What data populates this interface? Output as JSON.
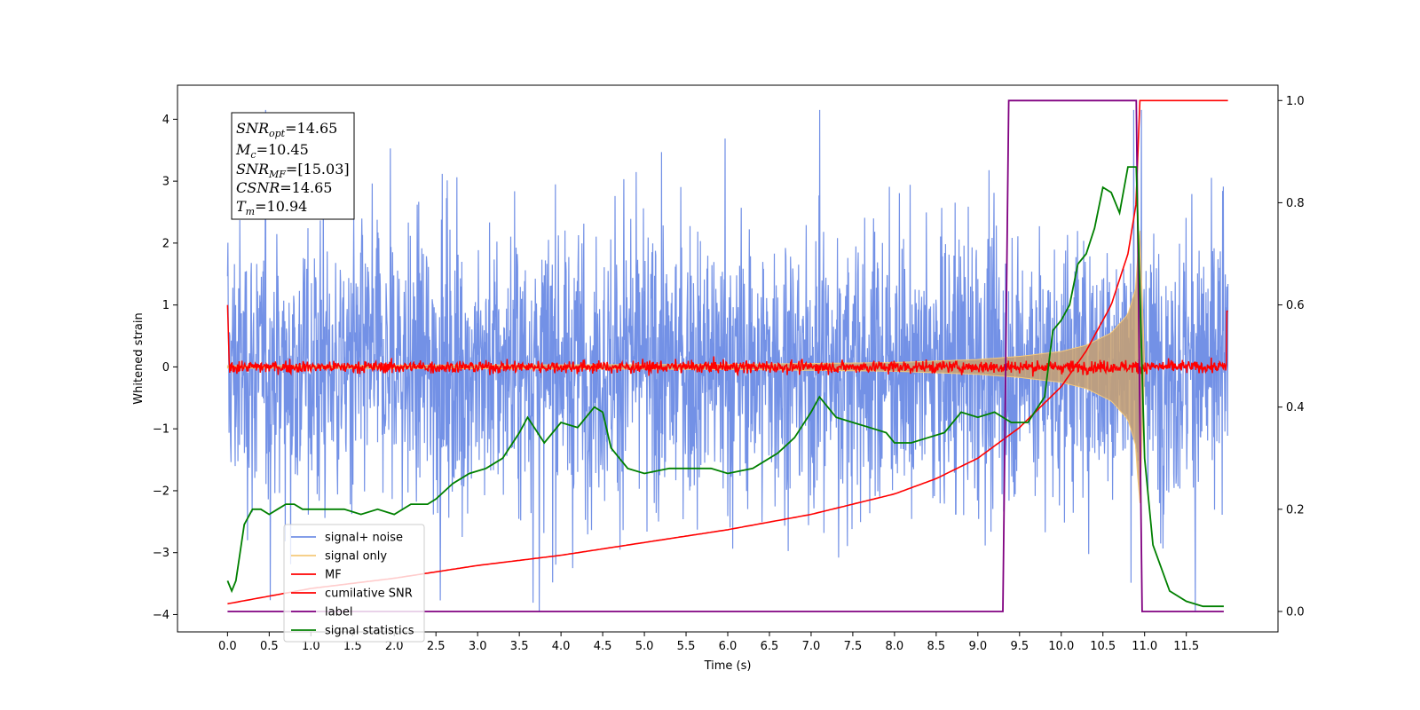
{
  "chart_data": {
    "type": "line",
    "xlabel": "Time (s)",
    "ylabel": "Whitened strain",
    "xlim": [
      -0.6,
      12.6
    ],
    "ylim_left": [
      -4.28,
      4.55
    ],
    "ylim_right": [
      -0.04,
      1.03
    ],
    "x_ticks": [
      "0.0",
      "0.5",
      "1.0",
      "1.5",
      "2.0",
      "2.5",
      "3.0",
      "3.5",
      "4.0",
      "4.5",
      "5.0",
      "5.5",
      "6.0",
      "6.5",
      "7.0",
      "7.5",
      "8.0",
      "8.5",
      "9.0",
      "9.5",
      "10.0",
      "10.5",
      "11.0",
      "11.5"
    ],
    "y_ticks_left": [
      "4",
      "3",
      "2",
      "1",
      "0",
      "−1",
      "−2",
      "−3",
      "−4"
    ],
    "y_ticks_right": [
      "1.0",
      "0.8",
      "0.6",
      "0.4",
      "0.2",
      "0.0"
    ],
    "grid": false,
    "legend_position": "lower-left",
    "annotation": {
      "snr_opt": {
        "base": "SNR",
        "sub": "opt",
        "value": "=14.65"
      },
      "mc": {
        "base": "M",
        "sub": "c",
        "value": "=10.45"
      },
      "snr_mf": {
        "base": "SNR",
        "sub": "MF",
        "value": "=[15.03]"
      },
      "csnr": {
        "base": "CSNR",
        "value": "=14.65"
      },
      "tm": {
        "base": "T",
        "sub": "m",
        "value": "=10.94"
      }
    },
    "series": [
      {
        "name": "signal+ noise",
        "color": "#7391e6",
        "axis": "left",
        "description_values": {
          "x_range": [
            0.0,
            12.0
          ],
          "amplitude": 2.4
        }
      },
      {
        "name": "signal only",
        "color": "#f5c97a",
        "axis": "left",
        "x": [
          0.0,
          6.0,
          8.0,
          9.0,
          9.5,
          10.0,
          10.3,
          10.6,
          10.8,
          10.9,
          10.94,
          11.0
        ],
        "envelope": [
          0.02,
          0.04,
          0.07,
          0.12,
          0.17,
          0.25,
          0.35,
          0.55,
          0.85,
          1.3,
          2.4,
          0.0
        ]
      },
      {
        "name": "MF",
        "color": "#ff0000",
        "axis": "left",
        "x_range": [
          0.0,
          12.0
        ],
        "level": 0.0,
        "noise": 0.1
      },
      {
        "name": "cumilative SNR",
        "color": "#ff0000",
        "axis": "right",
        "x": [
          0.0,
          0.5,
          1.0,
          2.0,
          3.0,
          4.0,
          5.0,
          6.0,
          7.0,
          8.0,
          8.5,
          9.0,
          9.5,
          10.0,
          10.3,
          10.6,
          10.8,
          10.9,
          10.94,
          12.0
        ],
        "y": [
          0.015,
          0.03,
          0.045,
          0.065,
          0.09,
          0.11,
          0.135,
          0.16,
          0.19,
          0.23,
          0.26,
          0.3,
          0.36,
          0.44,
          0.51,
          0.6,
          0.7,
          0.8,
          1.0,
          1.0
        ]
      },
      {
        "name": "label",
        "color": "#800080",
        "axis": "right",
        "x": [
          0.0,
          9.3,
          9.37,
          10.9,
          10.97,
          11.95
        ],
        "y": [
          0.0,
          0.0,
          1.0,
          1.0,
          0.0,
          0.0
        ]
      },
      {
        "name": "signal statistics",
        "color": "#008000",
        "axis": "right",
        "x": [
          0.0,
          0.05,
          0.1,
          0.2,
          0.3,
          0.4,
          0.5,
          0.6,
          0.7,
          0.8,
          0.9,
          1.0,
          1.2,
          1.4,
          1.6,
          1.8,
          2.0,
          2.2,
          2.4,
          2.5,
          2.7,
          2.9,
          3.1,
          3.3,
          3.5,
          3.6,
          3.8,
          4.0,
          4.2,
          4.4,
          4.5,
          4.6,
          4.8,
          5.0,
          5.3,
          5.5,
          5.8,
          6.0,
          6.3,
          6.6,
          6.8,
          7.0,
          7.1,
          7.2,
          7.3,
          7.5,
          7.7,
          7.9,
          8.0,
          8.2,
          8.4,
          8.6,
          8.8,
          9.0,
          9.2,
          9.4,
          9.6,
          9.8,
          9.9,
          10.0,
          10.1,
          10.2,
          10.3,
          10.4,
          10.5,
          10.6,
          10.7,
          10.8,
          10.9,
          11.0,
          11.1,
          11.3,
          11.5,
          11.7,
          11.95
        ],
        "y": [
          0.06,
          0.04,
          0.06,
          0.17,
          0.2,
          0.2,
          0.19,
          0.2,
          0.21,
          0.21,
          0.2,
          0.2,
          0.2,
          0.2,
          0.19,
          0.2,
          0.19,
          0.21,
          0.21,
          0.22,
          0.25,
          0.27,
          0.28,
          0.3,
          0.35,
          0.38,
          0.33,
          0.37,
          0.36,
          0.4,
          0.39,
          0.32,
          0.28,
          0.27,
          0.28,
          0.28,
          0.28,
          0.27,
          0.28,
          0.31,
          0.34,
          0.39,
          0.42,
          0.4,
          0.38,
          0.37,
          0.36,
          0.35,
          0.33,
          0.33,
          0.34,
          0.35,
          0.39,
          0.38,
          0.39,
          0.37,
          0.37,
          0.42,
          0.55,
          0.57,
          0.6,
          0.68,
          0.7,
          0.75,
          0.83,
          0.82,
          0.78,
          0.87,
          0.87,
          0.3,
          0.13,
          0.04,
          0.02,
          0.01,
          0.01
        ]
      }
    ]
  }
}
